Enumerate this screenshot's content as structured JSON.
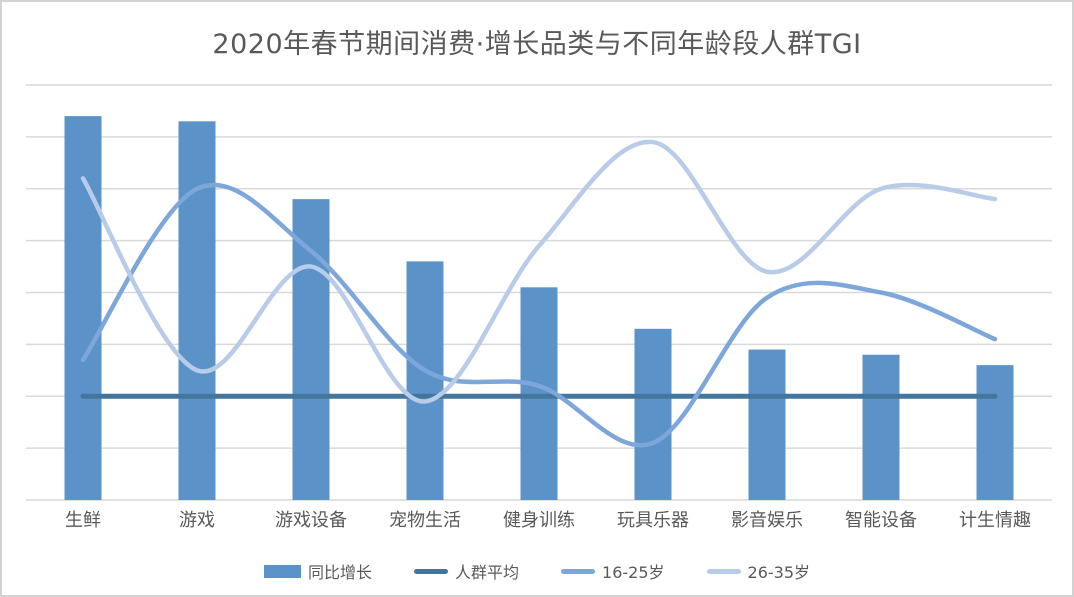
{
  "title": "2020年春节期间消费·增长品类与不同年龄段人群TGI",
  "colors": {
    "background": "#FFFFFF",
    "frame_border": "#D2D2D2",
    "grid": "#D9D9D9",
    "text": "#595959",
    "bar": "#5B93C9",
    "avg_line": "#44759D",
    "line_16_25": "#7DA7DB",
    "line_26_35": "#B8CCE9"
  },
  "chart_data": {
    "type": "bar",
    "title": "2020年春节期间消费·增长品类与不同年龄段人群TGI",
    "xlabel": "",
    "ylabel": "",
    "ylim": [
      0,
      400
    ],
    "grid_step": 50,
    "grid": true,
    "y_axis_labels_visible": false,
    "legend_position": "bottom",
    "categories": [
      "生鲜",
      "游戏",
      "游戏设备",
      "宠物生活",
      "健身训练",
      "玩具乐器",
      "影音娱乐",
      "智能设备",
      "计生情趣"
    ],
    "bar_series": {
      "name": "同比增长",
      "values": [
        370,
        365,
        290,
        230,
        205,
        165,
        145,
        140,
        130
      ],
      "color": "#5B93C9"
    },
    "line_series": [
      {
        "name": "人群平均",
        "values": [
          100,
          100,
          100,
          100,
          100,
          100,
          100,
          100,
          100
        ],
        "color": "#44759D",
        "smooth": false,
        "width": 5
      },
      {
        "name": "16-25岁",
        "values": [
          135,
          300,
          240,
          125,
          110,
          55,
          195,
          200,
          155
        ],
        "color": "#7DA7DB",
        "smooth": true,
        "width": 4.5
      },
      {
        "name": "26-35岁",
        "values": [
          310,
          125,
          225,
          95,
          245,
          345,
          220,
          300,
          290
        ],
        "color": "#B8CCE9",
        "smooth": true,
        "width": 4.5
      }
    ]
  }
}
